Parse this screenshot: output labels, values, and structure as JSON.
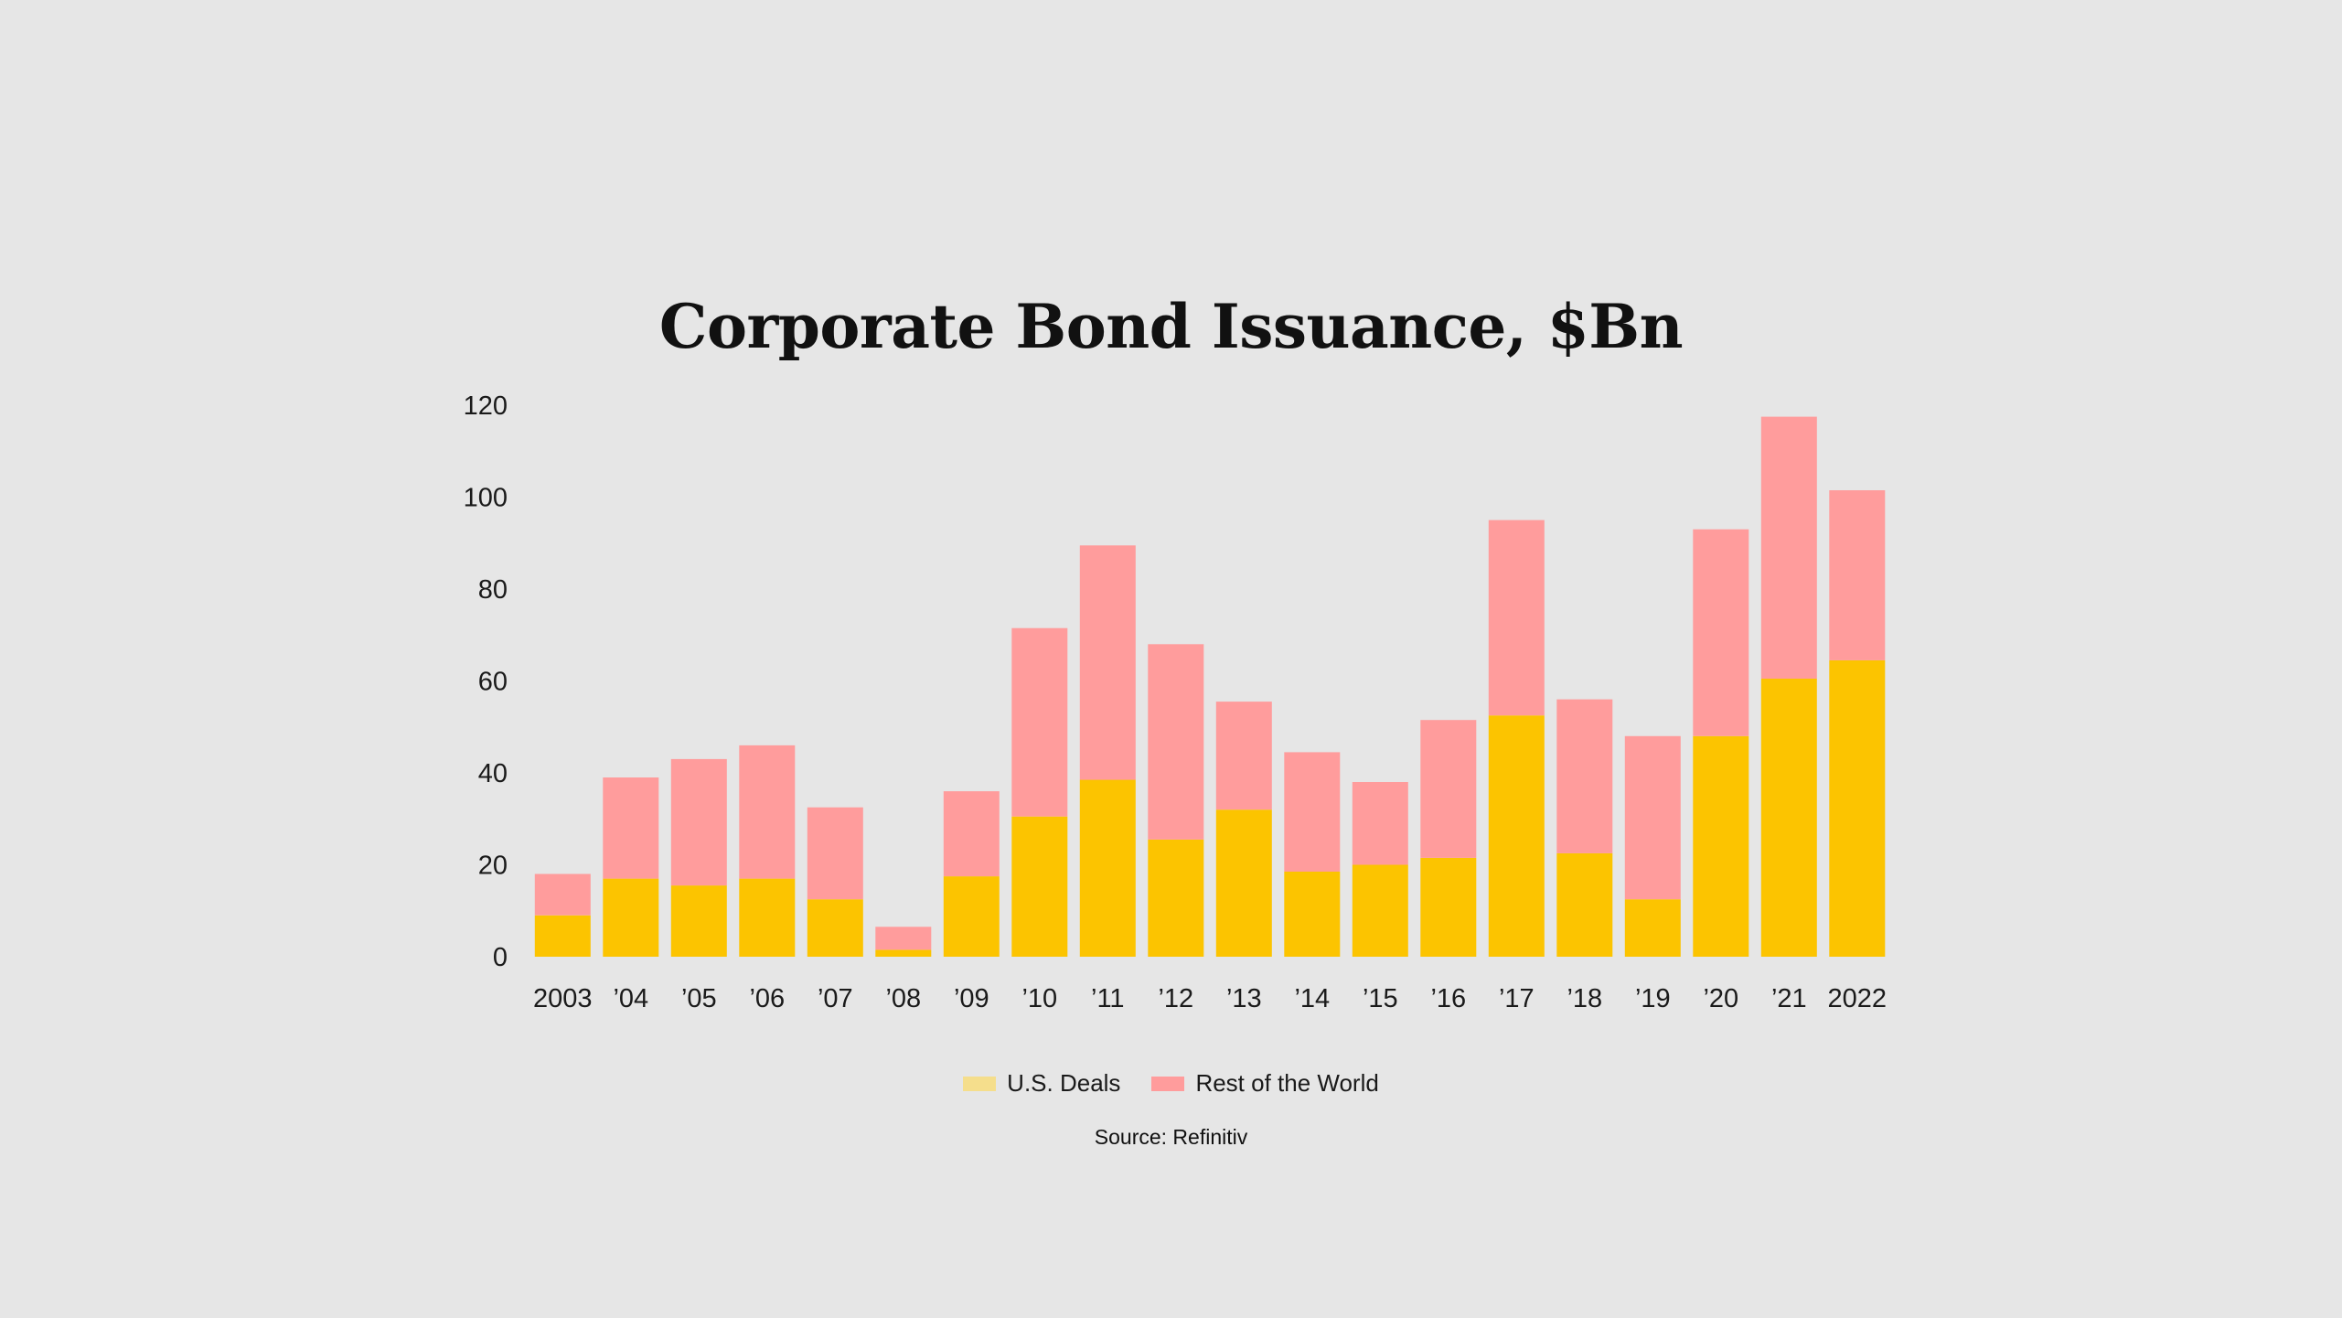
{
  "colors": {
    "background": "#e6e6e6",
    "us_deals": "#fcc400",
    "rest_of_world": "#ff9c9c",
    "legend_us_swatch": "#f5de8c"
  },
  "chart_data": {
    "type": "bar",
    "stacked": true,
    "title": "Corporate Bond  Issuance, $Bn",
    "xlabel": "",
    "ylabel": "",
    "ylim": [
      0,
      120
    ],
    "yticks": [
      0,
      20,
      40,
      60,
      80,
      100,
      120
    ],
    "grid": false,
    "legend_position": "bottom-center",
    "categories": [
      "2003",
      "’04",
      "’05",
      "’06",
      "’07",
      "’08",
      "’09",
      "’10",
      "’11",
      "’12",
      "’13",
      "’14",
      "’15",
      "’16",
      "’17",
      "’18",
      "’19",
      "’20",
      "’21",
      "2022"
    ],
    "series": [
      {
        "name": "U.S. Deals",
        "color": "#fcc400",
        "values": [
          9,
          17,
          15.5,
          17,
          12.5,
          1.5,
          17.5,
          30.5,
          38.5,
          25.5,
          32,
          18.5,
          20,
          21.5,
          52.5,
          22.5,
          12.5,
          48,
          60.5,
          64.5
        ]
      },
      {
        "name": "Rest of the World",
        "color": "#ff9c9c",
        "values": [
          9,
          22,
          27.5,
          29,
          20,
          5,
          18.5,
          41,
          51,
          42.5,
          23.5,
          26,
          18,
          30,
          42.5,
          33.5,
          35.5,
          45,
          57,
          37
        ]
      }
    ]
  },
  "legend": {
    "items": [
      {
        "label": "U.S. Deals",
        "color": "#f5de8c"
      },
      {
        "label": "Rest of the World",
        "color": "#ff9c9c"
      }
    ]
  },
  "source": "Source: Refinitiv"
}
